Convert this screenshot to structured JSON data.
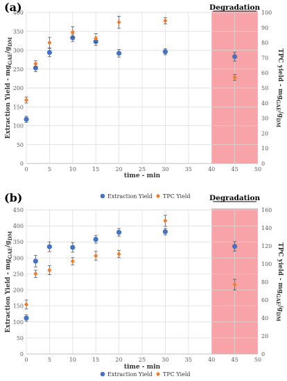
{
  "colors": {
    "extraction": "#4472C4",
    "tpc": "#ED7D31",
    "degradation_fill": "#F8A3A7",
    "grid": "#D9D9D9",
    "axis_text": "#595959"
  },
  "legend_position": "bottom-center",
  "chart_data": [
    {
      "type": "scatter",
      "panel_label": "(a)",
      "region_label": "Degradation",
      "region_x": [
        40,
        50
      ],
      "xlabel": "time - min",
      "ylabel_left": "Extraction Yield - mg_GAE/g_DM",
      "ylabel_right": "TPC yield - mg_GAE/g_DM",
      "xlim": [
        0,
        50
      ],
      "ylim_left": [
        0,
        400
      ],
      "ylim_right": [
        0,
        100
      ],
      "xticks": [
        0,
        5,
        10,
        15,
        20,
        25,
        30,
        35,
        40,
        45,
        50
      ],
      "yticks_left": [
        0,
        50,
        100,
        150,
        200,
        250,
        300,
        350,
        400
      ],
      "yticks_right": [
        0,
        10,
        20,
        30,
        40,
        50,
        60,
        70,
        80,
        90,
        100
      ],
      "grid": true,
      "series": [
        {
          "name": "Extraction Yield",
          "axis": "left",
          "marker": "circle",
          "x": [
            0,
            2,
            5,
            10,
            15,
            20,
            30,
            45
          ],
          "y": [
            117,
            253,
            294,
            333,
            323,
            292,
            296,
            283
          ],
          "err": [
            8,
            10,
            11,
            10,
            10,
            10,
            8,
            12
          ]
        },
        {
          "name": "TPC Yield",
          "axis": "right",
          "marker": "diamond",
          "x": [
            0,
            2,
            5,
            10,
            15,
            20,
            30,
            45
          ],
          "y": [
            42,
            66,
            80,
            87,
            83,
            93.5,
            94.5,
            57
          ],
          "err": [
            2,
            2,
            3.5,
            3.5,
            3,
            4,
            2,
            2
          ]
        }
      ]
    },
    {
      "type": "scatter",
      "panel_label": "(b)",
      "region_label": "Degradation",
      "region_x": [
        40,
        50
      ],
      "xlabel": "time - min",
      "ylabel_left": "Extraction Yield - mg_GAE/g_DM",
      "ylabel_right": "TPC yield - mg_GAE/g_DM",
      "xlim": [
        0,
        50
      ],
      "ylim_left": [
        0,
        450
      ],
      "ylim_right": [
        0,
        160
      ],
      "xticks": [
        0,
        5,
        10,
        15,
        20,
        25,
        30,
        35,
        40,
        45,
        50
      ],
      "yticks_left": [
        0,
        50,
        100,
        150,
        200,
        250,
        300,
        350,
        400,
        450
      ],
      "yticks_right": [
        0,
        20,
        40,
        60,
        80,
        100,
        120,
        140,
        160
      ],
      "grid": true,
      "series": [
        {
          "name": "Extraction Yield",
          "axis": "left",
          "marker": "circle",
          "x": [
            0,
            2,
            5,
            10,
            15,
            20,
            30,
            45
          ],
          "y": [
            112,
            290,
            335,
            333,
            358,
            380,
            382,
            336
          ],
          "err": [
            10,
            18,
            15,
            15,
            12,
            12,
            10,
            15
          ]
        },
        {
          "name": "TPC Yield",
          "axis": "right",
          "marker": "diamond",
          "x": [
            0,
            2,
            5,
            10,
            15,
            20,
            30,
            45
          ],
          "y": [
            55,
            89,
            93,
            103,
            109,
            111,
            148,
            77
          ],
          "err": [
            5,
            4,
            5,
            4,
            5,
            4,
            6,
            6
          ]
        }
      ]
    }
  ]
}
